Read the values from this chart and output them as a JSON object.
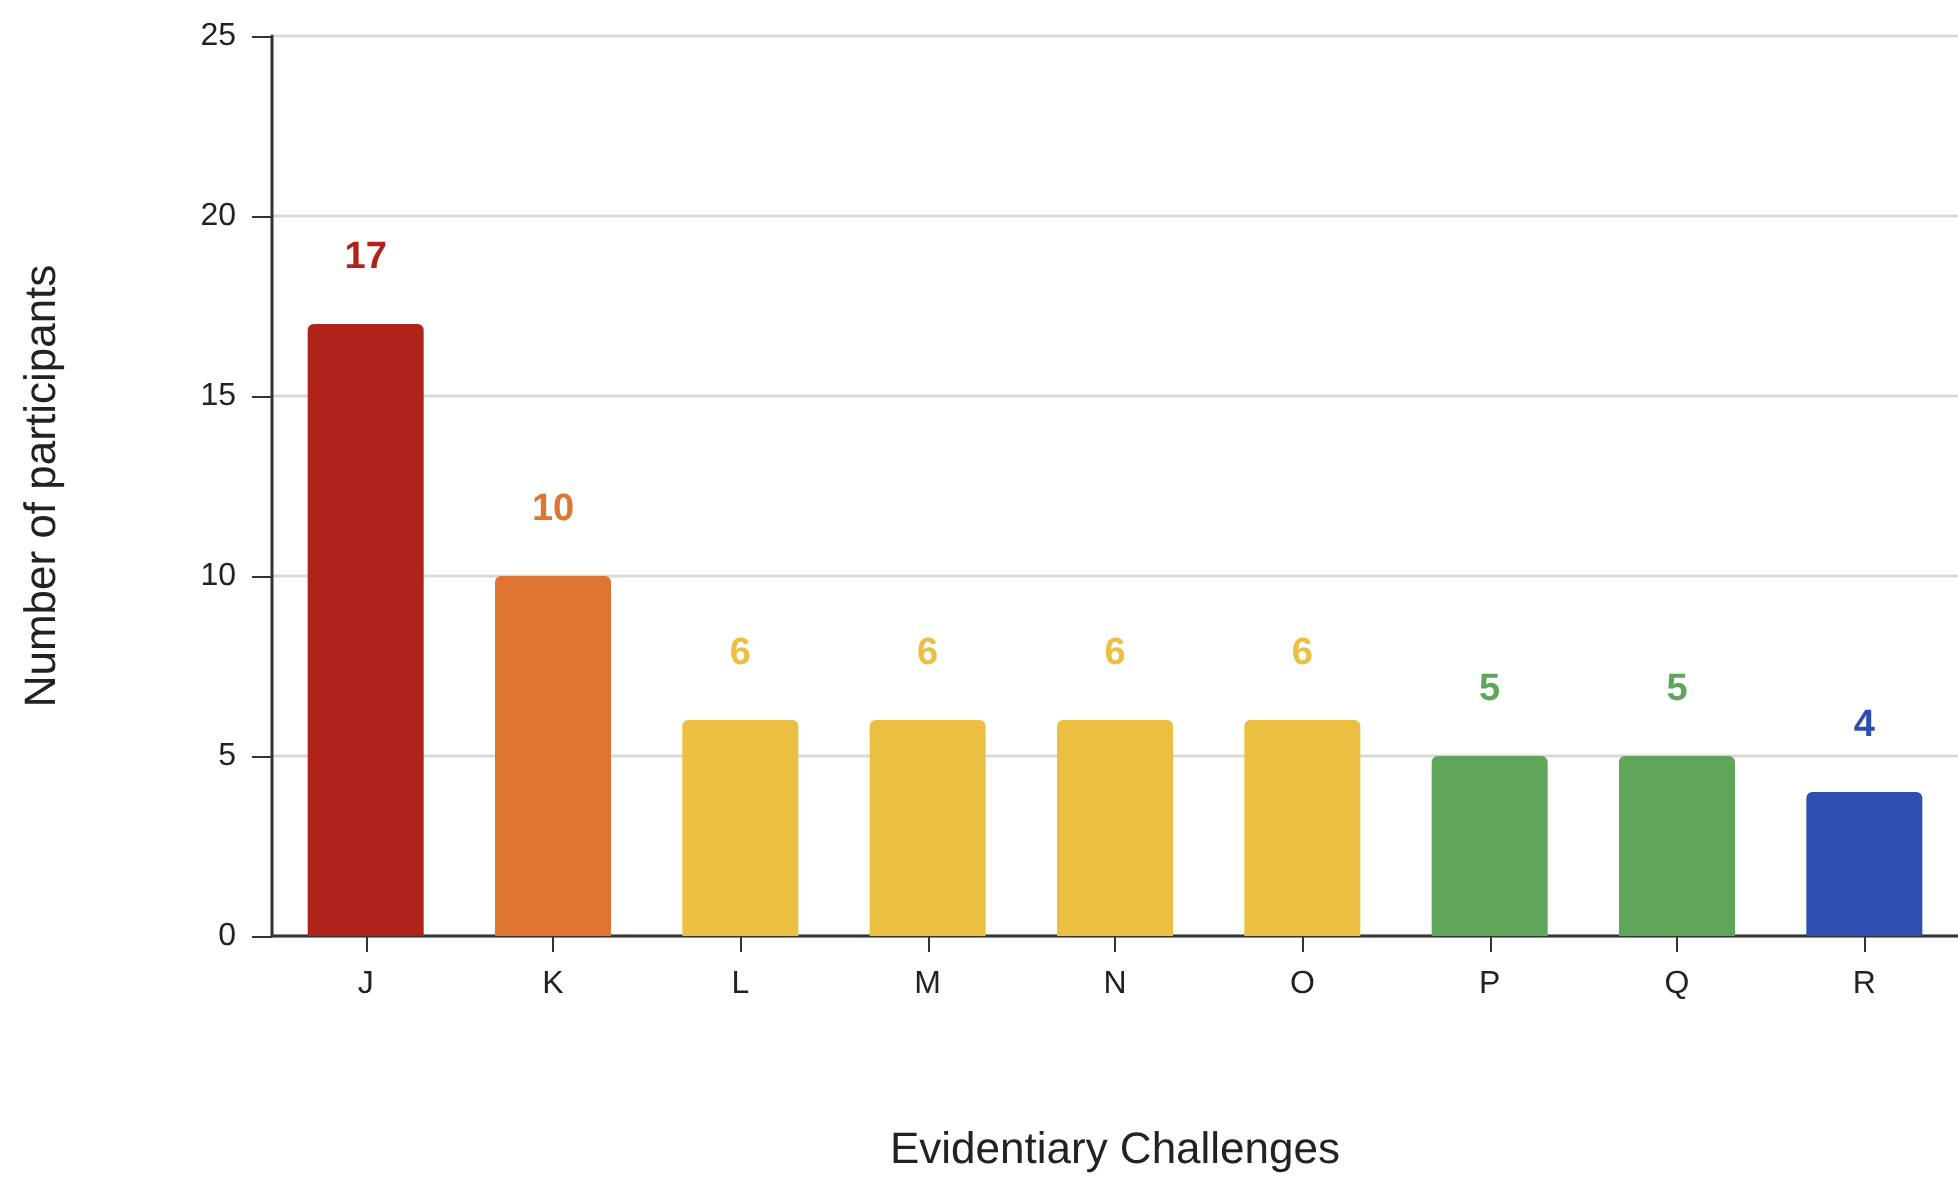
{
  "chart_data": {
    "type": "bar",
    "xlabel": "Evidentiary Challenges",
    "ylabel": "Number of participants",
    "categories": [
      "J",
      "K",
      "L",
      "M",
      "N",
      "O",
      "P",
      "Q",
      "R"
    ],
    "values": [
      17,
      10,
      6,
      6,
      6,
      6,
      5,
      5,
      4
    ],
    "colors": [
      "#b0231b",
      "#e07532",
      "#ebbf42",
      "#ebbf42",
      "#ebbf42",
      "#ebbf42",
      "#5fa65a",
      "#5fa65a",
      "#2f4fb0"
    ],
    "ylim": [
      0,
      25
    ],
    "yticks": [
      0,
      5,
      10,
      15,
      20,
      25
    ],
    "grid": "y",
    "data_labels": true
  }
}
